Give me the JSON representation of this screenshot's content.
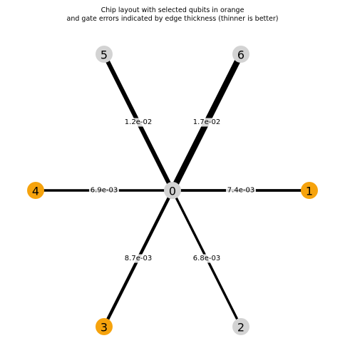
{
  "title_lines": [
    "Chip layout with selected qubits in orange",
    "and gate errors indicated by edge thickness (thinner is better)"
  ],
  "colors": {
    "selected": "#f6a30d",
    "unselected": "#d3d3d3",
    "edge": "#000000",
    "label_bg": "#ffffff"
  },
  "nodes": [
    {
      "id": "0",
      "label": "0",
      "selected": false
    },
    {
      "id": "1",
      "label": "1",
      "selected": true
    },
    {
      "id": "2",
      "label": "2",
      "selected": false
    },
    {
      "id": "3",
      "label": "3",
      "selected": true
    },
    {
      "id": "4",
      "label": "4",
      "selected": true
    },
    {
      "id": "5",
      "label": "5",
      "selected": false
    },
    {
      "id": "6",
      "label": "6",
      "selected": false
    }
  ],
  "edges": [
    {
      "source": "0",
      "target": "1",
      "error": 0.0074,
      "label": "7.4e-03"
    },
    {
      "source": "0",
      "target": "2",
      "error": 0.0068,
      "label": "6.8e-03"
    },
    {
      "source": "0",
      "target": "3",
      "error": 0.0087,
      "label": "8.7e-03"
    },
    {
      "source": "0",
      "target": "4",
      "error": 0.0069,
      "label": "6.9e-03"
    },
    {
      "source": "0",
      "target": "5",
      "error": 0.012,
      "label": "1.2e-02"
    },
    {
      "source": "0",
      "target": "6",
      "error": 0.017,
      "label": "1.7e-02"
    }
  ]
}
